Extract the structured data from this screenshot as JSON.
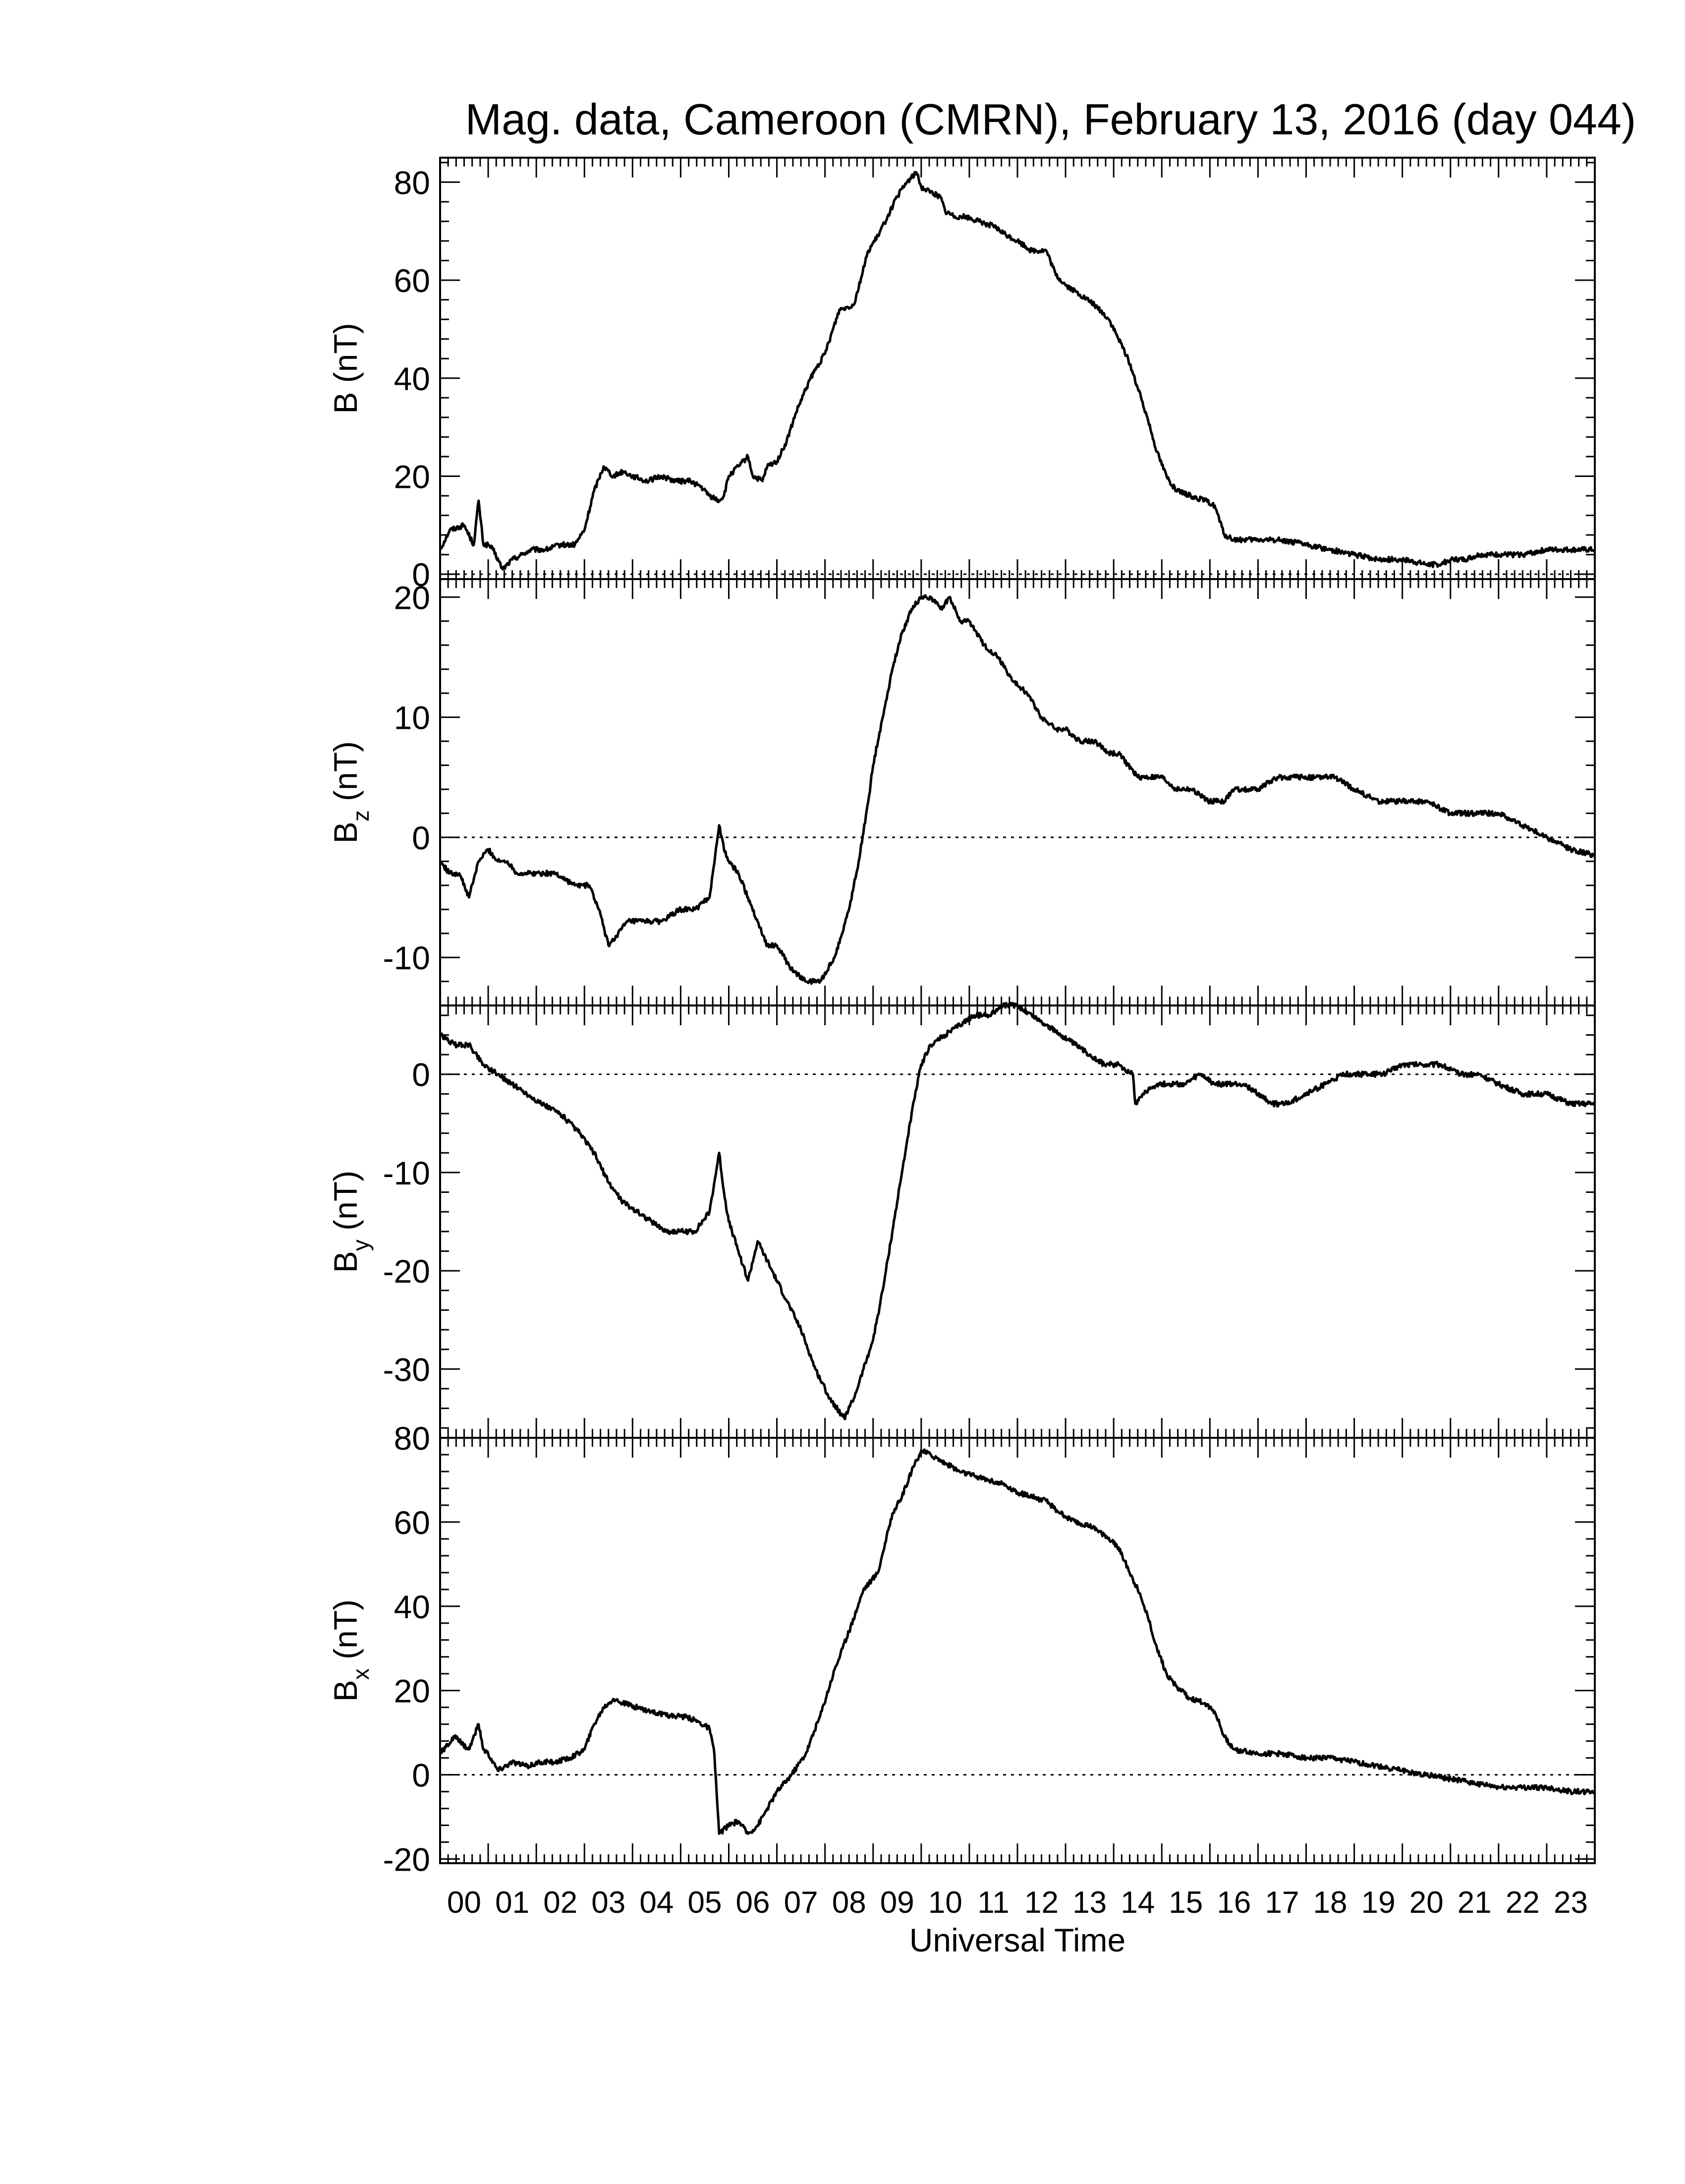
{
  "chart_data": {
    "title": "Mag. data, Cameroon (CMRN), February 13, 2016 (day 044)",
    "type": "line",
    "xlabel": "Universal Time",
    "xlim": [
      0,
      24
    ],
    "x_tick_labels": [
      "00",
      "01",
      "02",
      "03",
      "04",
      "05",
      "06",
      "07",
      "08",
      "09",
      "10",
      "11",
      "12",
      "13",
      "14",
      "15",
      "16",
      "17",
      "18",
      "19",
      "20",
      "21",
      "22",
      "23"
    ],
    "grid": false,
    "panels": [
      {
        "ylabel": "B (nT)",
        "ylabel_base": "B",
        "ylabel_sub": "",
        "ylabel_unit": " (nT)",
        "ylim": [
          -1,
          85
        ],
        "yticks": [
          0,
          20,
          40,
          60,
          80
        ],
        "ytick_labels": [
          "0",
          "20",
          "40",
          "60",
          "80"
        ],
        "zero_line": true,
        "x": [
          0.0,
          0.2,
          0.5,
          0.7,
          0.8,
          0.9,
          1.0,
          1.1,
          1.3,
          1.5,
          1.7,
          1.9,
          2.2,
          2.5,
          2.8,
          3.0,
          3.2,
          3.4,
          3.6,
          3.8,
          4.0,
          4.3,
          4.6,
          4.9,
          5.2,
          5.4,
          5.6,
          5.8,
          5.9,
          6.0,
          6.2,
          6.4,
          6.5,
          6.7,
          6.8,
          7.0,
          7.2,
          7.4,
          7.7,
          8.0,
          8.3,
          8.6,
          8.9,
          9.1,
          9.3,
          9.5,
          9.7,
          9.9,
          10.0,
          10.2,
          10.4,
          10.5,
          10.7,
          10.9,
          11.2,
          11.5,
          11.8,
          12.0,
          12.3,
          12.6,
          12.8,
          13.0,
          13.3,
          13.6,
          13.9,
          14.1,
          14.3,
          14.5,
          14.7,
          14.9,
          15.1,
          15.3,
          15.6,
          15.9,
          16.1,
          16.3,
          16.5,
          16.7,
          17.0,
          17.5,
          18.0,
          18.5,
          19.0,
          19.5,
          20.0,
          20.5,
          20.8,
          21.0,
          21.3,
          21.6,
          21.8,
          22.0,
          22.5,
          23.0,
          23.5,
          24.0
        ],
        "y": [
          5,
          9,
          10,
          6,
          15,
          6,
          6,
          5,
          1,
          3,
          4,
          5,
          5,
          6,
          6,
          9,
          17,
          22,
          20,
          21,
          20,
          19,
          20,
          19,
          19,
          18,
          16,
          15,
          16,
          20,
          22,
          24,
          20,
          19,
          22,
          23,
          27,
          33,
          40,
          45,
          54,
          55,
          66,
          69,
          73,
          77,
          80,
          82,
          79,
          78,
          77,
          74,
          73,
          73,
          72,
          71,
          69,
          68,
          66,
          66,
          61,
          59,
          57,
          55,
          52,
          48,
          44,
          38,
          32,
          25,
          20,
          17,
          16,
          15,
          14,
          8,
          7,
          7,
          7,
          7,
          6,
          5,
          4,
          3,
          3,
          2,
          2,
          3,
          3,
          4,
          4,
          4,
          4,
          5,
          5,
          5
        ]
      },
      {
        "ylabel": "Bz (nT)",
        "ylabel_base": "B",
        "ylabel_sub": "z",
        "ylabel_unit": " (nT)",
        "ylim": [
          -14,
          21.5
        ],
        "yticks": [
          -10,
          0,
          10,
          20
        ],
        "ytick_labels": [
          "-10",
          "0",
          "10",
          "20"
        ],
        "zero_line": true,
        "x": [
          0.0,
          0.2,
          0.4,
          0.6,
          0.8,
          1.0,
          1.2,
          1.4,
          1.6,
          1.8,
          2.0,
          2.4,
          2.8,
          3.1,
          3.3,
          3.5,
          3.7,
          3.9,
          4.2,
          4.6,
          5.0,
          5.3,
          5.6,
          5.8,
          5.9,
          6.0,
          6.2,
          6.4,
          6.6,
          6.8,
          7.0,
          7.3,
          7.6,
          7.9,
          8.2,
          8.5,
          8.7,
          8.9,
          9.0,
          9.2,
          9.4,
          9.6,
          9.8,
          10.0,
          10.2,
          10.4,
          10.6,
          10.8,
          11.0,
          11.3,
          11.6,
          11.9,
          12.2,
          12.5,
          12.8,
          13.0,
          13.3,
          13.6,
          13.9,
          14.1,
          14.3,
          14.5,
          14.7,
          15.0,
          15.3,
          15.6,
          16.0,
          16.3,
          16.5,
          16.7,
          17.0,
          17.4,
          17.8,
          18.2,
          18.6,
          19.0,
          19.5,
          20.0,
          20.5,
          21.0,
          21.5,
          22.0,
          22.5,
          23.0,
          23.5,
          24.0
        ],
        "y": [
          -2,
          -3,
          -3,
          -5,
          -2,
          -1,
          -2,
          -2,
          -3,
          -3,
          -3,
          -3,
          -4,
          -4,
          -6,
          -9,
          -8,
          -7,
          -7,
          -7,
          -6,
          -6,
          -5,
          1,
          -1,
          -2,
          -3,
          -5,
          -7,
          -9,
          -9,
          -11,
          -12,
          -12,
          -10,
          -6,
          -2,
          3,
          6,
          10,
          14,
          17,
          19,
          20,
          20,
          19,
          20,
          18,
          18,
          16,
          15,
          13,
          12,
          10,
          9,
          9,
          8,
          8,
          7,
          7,
          6,
          5,
          5,
          5,
          4,
          4,
          3,
          3,
          4,
          4,
          4,
          5,
          5,
          5,
          5,
          4,
          3,
          3,
          3,
          2,
          2,
          2,
          1,
          0,
          -1,
          -1.5
        ]
      },
      {
        "ylabel": "By (nT)",
        "ylabel_base": "B",
        "ylabel_sub": "y",
        "ylabel_unit": " (nT)",
        "ylim": [
          -37,
          7
        ],
        "yticks": [
          -30,
          -20,
          -10,
          0
        ],
        "ytick_labels": [
          "-30",
          "-20",
          "-10",
          "0"
        ],
        "zero_line": true,
        "x": [
          0.0,
          0.3,
          0.6,
          0.9,
          1.2,
          1.5,
          1.8,
          2.1,
          2.5,
          2.9,
          3.2,
          3.5,
          3.8,
          4.1,
          4.4,
          4.7,
          5.0,
          5.3,
          5.6,
          5.8,
          5.9,
          6.0,
          6.2,
          6.4,
          6.6,
          6.8,
          7.0,
          7.2,
          7.5,
          7.8,
          8.1,
          8.4,
          8.6,
          8.8,
          9.0,
          9.2,
          9.4,
          9.6,
          9.8,
          10.0,
          10.2,
          10.5,
          10.8,
          11.1,
          11.4,
          11.7,
          12.0,
          12.3,
          12.6,
          12.9,
          13.2,
          13.5,
          13.8,
          14.1,
          14.4,
          14.45,
          14.6,
          14.9,
          15.2,
          15.5,
          15.8,
          16.1,
          16.4,
          16.7,
          17.0,
          17.3,
          17.6,
          18.0,
          18.4,
          18.8,
          19.2,
          19.6,
          20.0,
          20.4,
          20.8,
          21.2,
          21.6,
          22.0,
          22.5,
          23.0,
          23.5,
          24.0
        ],
        "y": [
          4,
          3,
          3,
          1,
          0,
          -1,
          -2,
          -3,
          -4,
          -6,
          -8,
          -11,
          -13,
          -14,
          -15,
          -16,
          -16,
          -16,
          -14,
          -8,
          -12,
          -15,
          -18,
          -21,
          -17,
          -19,
          -21,
          -23,
          -26,
          -30,
          -33,
          -35,
          -33,
          -30,
          -27,
          -22,
          -16,
          -10,
          -4,
          1,
          3,
          4,
          5,
          6,
          6,
          7,
          7,
          6,
          5,
          4,
          3,
          2,
          1,
          1,
          0,
          -3,
          -2,
          -1,
          -1,
          -1,
          0,
          -1,
          -1,
          -1,
          -2,
          -3,
          -3,
          -2,
          -1,
          0,
          0,
          0,
          1,
          1,
          1,
          0,
          0,
          -1,
          -2,
          -2,
          -3,
          -3
        ]
      },
      {
        "ylabel": "Bx (nT)",
        "ylabel_base": "B",
        "ylabel_sub": "x",
        "ylabel_unit": " (nT)",
        "ylim": [
          -21,
          80
        ],
        "yticks": [
          -20,
          0,
          20,
          40,
          60,
          80
        ],
        "ytick_labels": [
          "-20",
          "0",
          "20",
          "40",
          "60",
          "80"
        ],
        "zero_line": true,
        "x": [
          0.0,
          0.3,
          0.6,
          0.8,
          0.9,
          1.0,
          1.2,
          1.5,
          1.8,
          2.1,
          2.4,
          2.7,
          3.0,
          3.2,
          3.4,
          3.6,
          3.8,
          4.1,
          4.4,
          4.7,
          5.0,
          5.3,
          5.6,
          5.7,
          5.8,
          6.0,
          6.2,
          6.4,
          6.6,
          6.8,
          7.0,
          7.3,
          7.6,
          7.9,
          8.2,
          8.5,
          8.8,
          9.1,
          9.4,
          9.6,
          9.8,
          10.0,
          10.2,
          10.5,
          10.8,
          11.1,
          11.4,
          11.7,
          12.0,
          12.3,
          12.6,
          12.9,
          13.2,
          13.5,
          13.8,
          14.1,
          14.3,
          14.5,
          14.7,
          14.9,
          15.1,
          15.3,
          15.6,
          15.9,
          16.1,
          16.3,
          16.5,
          17.0,
          17.5,
          18.0,
          18.5,
          19.0,
          19.5,
          20.0,
          20.5,
          21.0,
          21.5,
          22.0,
          22.5,
          23.0,
          23.5,
          24.0
        ],
        "y": [
          5,
          9,
          6,
          12,
          6,
          5,
          1,
          3,
          2,
          3,
          3,
          4,
          6,
          12,
          16,
          18,
          17,
          16,
          15,
          14,
          14,
          13,
          11,
          5,
          -14,
          -12,
          -11,
          -14,
          -12,
          -8,
          -4,
          0,
          5,
          14,
          25,
          34,
          44,
          48,
          62,
          66,
          72,
          77,
          76,
          74,
          72,
          71,
          70,
          69,
          67,
          66,
          65,
          62,
          60,
          59,
          57,
          54,
          49,
          44,
          38,
          30,
          24,
          21,
          18,
          17,
          15,
          9,
          6,
          5,
          5,
          4,
          4,
          3,
          2,
          1,
          0,
          -1,
          -2,
          -3,
          -3,
          -3,
          -4,
          -4
        ]
      }
    ]
  }
}
